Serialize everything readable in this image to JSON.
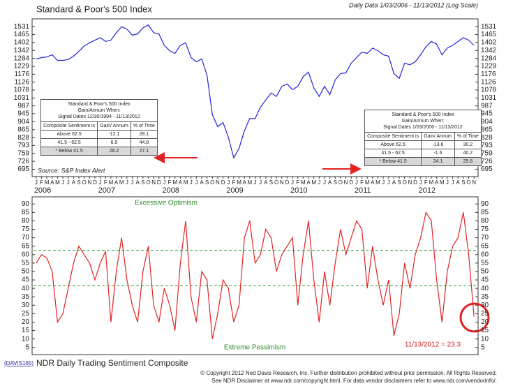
{
  "header": {
    "title": "Standard & Poor's 500 Index",
    "subtitle": "Daily Data 1/03/2006 - 11/13/2012 (Log Scale)",
    "bottom_title": "NDR Daily Trading Sentiment Composite",
    "code": "(DAVIS165)"
  },
  "chart_data": [
    {
      "type": "line",
      "log_scale": true,
      "color": "#2323d8",
      "source": "Source: S&P Index Alert",
      "categories": [
        "J",
        "F",
        "M",
        "A",
        "M",
        "J",
        "J",
        "A",
        "S",
        "O",
        "N",
        "D",
        "J",
        "F",
        "M",
        "A",
        "M",
        "J",
        "J",
        "A",
        "S",
        "O",
        "N",
        "D",
        "J",
        "F",
        "M",
        "A",
        "M",
        "J",
        "J",
        "A",
        "S",
        "O",
        "N",
        "D",
        "J",
        "F",
        "M",
        "A",
        "M",
        "J",
        "J",
        "A",
        "S",
        "O",
        "N",
        "D",
        "J",
        "F",
        "M",
        "A",
        "M",
        "J",
        "J",
        "A",
        "S",
        "O",
        "N",
        "D",
        "J",
        "F",
        "M",
        "A",
        "M",
        "J",
        "J",
        "A",
        "S",
        "O",
        "N",
        "D",
        "J",
        "F",
        "M",
        "A",
        "M",
        "J",
        "J",
        "A",
        "S",
        "O",
        "N"
      ],
      "year_labels": [
        2006,
        2007,
        2008,
        2009,
        2010,
        2011,
        2012
      ],
      "values": [
        1280,
        1290,
        1295,
        1310,
        1270,
        1270,
        1276,
        1300,
        1335,
        1375,
        1400,
        1420,
        1440,
        1410,
        1420,
        1480,
        1530,
        1510,
        1460,
        1470,
        1520,
        1545,
        1480,
        1470,
        1380,
        1340,
        1320,
        1380,
        1400,
        1290,
        1260,
        1280,
        1170,
        940,
        880,
        900,
        830,
        740,
        780,
        860,
        920,
        920,
        980,
        1020,
        1060,
        1040,
        1100,
        1115,
        1080,
        1100,
        1160,
        1190,
        1090,
        1040,
        1100,
        1050,
        1140,
        1180,
        1185,
        1250,
        1290,
        1330,
        1320,
        1360,
        1340,
        1310,
        1300,
        1180,
        1150,
        1250,
        1240,
        1260,
        1310,
        1370,
        1410,
        1390,
        1310,
        1360,
        1380,
        1410,
        1440,
        1420,
        1380
      ],
      "ylim": [
        675,
        1580
      ],
      "yticks": [
        1531,
        1465,
        1402,
        1342,
        1284,
        1229,
        1176,
        1126,
        1078,
        1031,
        987,
        945,
        904,
        865,
        828,
        793,
        759,
        726,
        695
      ]
    },
    {
      "type": "line",
      "color": "#e32222",
      "values": [
        55,
        60,
        58,
        50,
        20,
        25,
        40,
        55,
        65,
        60,
        55,
        45,
        55,
        62,
        20,
        50,
        70,
        45,
        30,
        20,
        50,
        65,
        30,
        20,
        40,
        30,
        15,
        55,
        80,
        35,
        20,
        50,
        45,
        10,
        25,
        45,
        40,
        20,
        30,
        70,
        80,
        55,
        60,
        75,
        70,
        50,
        60,
        65,
        70,
        30,
        60,
        80,
        45,
        20,
        50,
        30,
        55,
        75,
        60,
        70,
        80,
        75,
        40,
        65,
        45,
        30,
        45,
        12,
        25,
        55,
        40,
        60,
        70,
        85,
        80,
        45,
        20,
        50,
        65,
        70,
        85,
        60,
        23.3
      ],
      "ylim": [
        2,
        93
      ],
      "yticks": [
        5,
        10,
        15,
        20,
        25,
        30,
        35,
        40,
        45,
        50,
        55,
        60,
        65,
        70,
        75,
        80,
        85,
        90
      ],
      "hlines": [
        62.5,
        41.5
      ],
      "hline_color": "#2a9a2a",
      "annotations": [
        "Excessive Optimism",
        "Extreme Pessimism",
        "11/13/2012 = 23.3"
      ]
    }
  ],
  "tables": [
    {
      "title_lines": [
        "Standard & Poor's 500 Index",
        "Gain/Annum When:",
        "Signal Dates 12/30/1994 - 11/13/2012"
      ],
      "columns": [
        "Composite Sentiment is",
        "Gain/ Annum",
        "% of Time"
      ],
      "rows": [
        [
          "Above 62.5",
          -12.1,
          28.1
        ],
        [
          "41.5 - 62.5",
          6.9,
          44.8
        ],
        [
          "* Below 41.5",
          28.2,
          27.1
        ]
      ]
    },
    {
      "title_lines": [
        "Standard & Poor's 500 Index",
        "Gain/Annum When:",
        "Signal Dates 1/03/2006 - 11/13/2012"
      ],
      "columns": [
        "Composite Sentiment is",
        "Gain/ Annum",
        "% of Time"
      ],
      "rows": [
        [
          "Above 62.5",
          -13.6,
          30.2
        ],
        [
          "41.5 - 62.5",
          -1.6,
          40.2
        ],
        [
          "* Below 41.5",
          24.1,
          29.6
        ]
      ]
    }
  ],
  "footer": {
    "line1": "© Copyright 2012 Ned Davis Research, Inc. Further distribution prohibited without prior permission. All Rights Reserved.",
    "line2": "See NDR Disclaimer at www.ndr.com/copyright.html. For data vendor disclaimers refer to www.ndr.com/vendorinfo/."
  }
}
